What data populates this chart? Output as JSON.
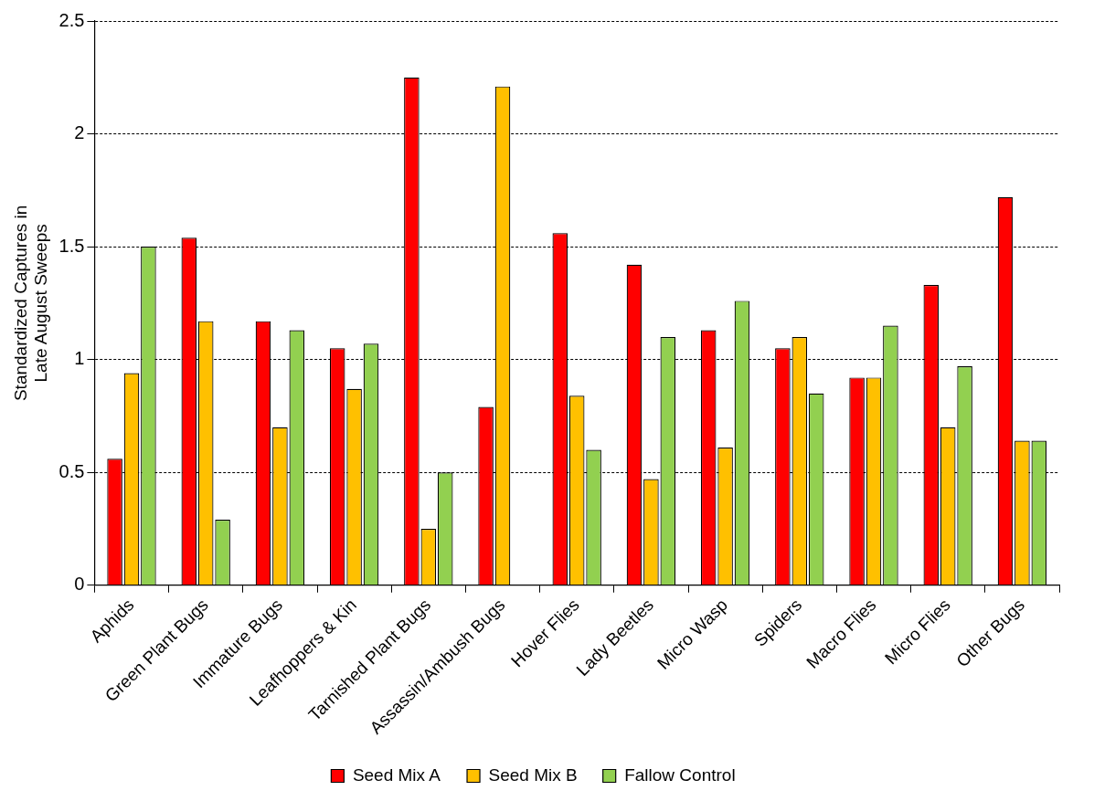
{
  "chart_data": {
    "type": "bar",
    "ylabel": "Standardized Captures in Late August Sweeps",
    "categories": [
      "Aphids",
      "Green Plant Bugs",
      "Immature Bugs",
      "Leafhoppers & Kin",
      "Tarnished Plant Bugs",
      "Assassin/Ambush Bugs",
      "Hover Flies",
      "Lady Beetles",
      "Micro Wasp",
      "Spiders",
      "Macro Flies",
      "Micro Flies",
      "Other Bugs"
    ],
    "series": [
      {
        "name": "Seed Mix A",
        "color": "#ff0000",
        "values": [
          0.56,
          1.54,
          1.17,
          1.05,
          2.25,
          0.79,
          1.56,
          1.42,
          1.13,
          1.05,
          0.92,
          1.33,
          1.72
        ]
      },
      {
        "name": "Seed Mix B",
        "color": "#ffc000",
        "values": [
          0.94,
          1.17,
          0.7,
          0.87,
          0.25,
          2.21,
          0.84,
          0.47,
          0.61,
          1.1,
          0.92,
          0.7,
          0.64
        ]
      },
      {
        "name": "Fallow Control",
        "color": "#92d050",
        "values": [
          1.5,
          0.29,
          1.13,
          1.07,
          0.5,
          0,
          0.6,
          1.1,
          1.26,
          0.85,
          1.15,
          0.97,
          0.64
        ]
      }
    ],
    "ylim": [
      0,
      2.5
    ],
    "yticks": [
      0,
      0.5,
      1,
      1.5,
      2,
      2.5
    ],
    "grid": "y",
    "legend": "bottom"
  }
}
